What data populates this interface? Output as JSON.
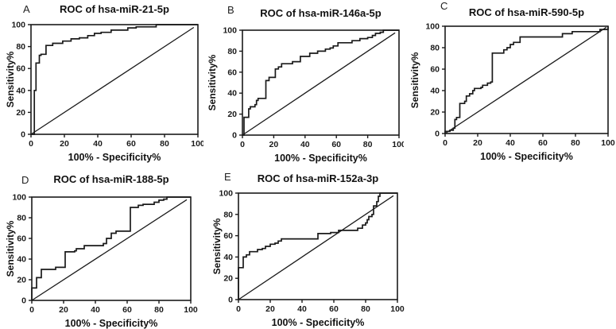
{
  "figure": {
    "background_color": "#ffffff",
    "line_color": "#1a1a1a",
    "description_labels": [
      "A",
      "B",
      "C",
      "D",
      "E"
    ]
  },
  "chart_data": [
    {
      "type": "line",
      "panel": "A",
      "title": "ROC of hsa-miR-21-5p",
      "xlabel": "100%  - Specificity%",
      "ylabel": "Sensitivity%",
      "xlim": [
        0,
        100
      ],
      "ylim": [
        0,
        100
      ],
      "xticks": [
        0,
        20,
        40,
        60,
        80,
        100
      ],
      "yticks": [
        0,
        20,
        40,
        60,
        80,
        100
      ],
      "grid": false,
      "legend": "none",
      "series": [
        {
          "name": "ROC curve",
          "points": [
            [
              0,
              0
            ],
            [
              2,
              0
            ],
            [
              2,
              40
            ],
            [
              3,
              40
            ],
            [
              3,
              65
            ],
            [
              5,
              65
            ],
            [
              5,
              72
            ],
            [
              6,
              72
            ],
            [
              6,
              73
            ],
            [
              9,
              73
            ],
            [
              9,
              81
            ],
            [
              13,
              81
            ],
            [
              13,
              83
            ],
            [
              19,
              83
            ],
            [
              19,
              85
            ],
            [
              24,
              85
            ],
            [
              24,
              87
            ],
            [
              29,
              87
            ],
            [
              29,
              88
            ],
            [
              34,
              88
            ],
            [
              34,
              90
            ],
            [
              38,
              90
            ],
            [
              38,
              92
            ],
            [
              42,
              92
            ],
            [
              42,
              93
            ],
            [
              48,
              93
            ],
            [
              48,
              95
            ],
            [
              58,
              95
            ],
            [
              58,
              97
            ],
            [
              63,
              97
            ],
            [
              63,
              98
            ],
            [
              75,
              98
            ],
            [
              75,
              100
            ],
            [
              100,
              100
            ]
          ]
        },
        {
          "name": "identity line",
          "points": [
            [
              0,
              0
            ],
            [
              97.5,
              97.5
            ]
          ]
        }
      ]
    },
    {
      "type": "line",
      "panel": "B",
      "title": "ROC of hsa-miR-146a-5p",
      "xlabel": "100%  - Specificity%",
      "ylabel": "Sensitivity%",
      "xlim": [
        0,
        100
      ],
      "ylim": [
        0,
        100
      ],
      "xticks": [
        0,
        20,
        40,
        60,
        80,
        100
      ],
      "yticks": [
        0,
        20,
        40,
        60,
        80,
        100
      ],
      "grid": false,
      "legend": "none",
      "series": [
        {
          "name": "ROC curve",
          "points": [
            [
              0,
              0
            ],
            [
              1,
              0
            ],
            [
              1,
              17
            ],
            [
              4,
              17
            ],
            [
              4,
              25
            ],
            [
              5,
              25
            ],
            [
              5,
              27
            ],
            [
              8,
              27
            ],
            [
              8,
              29
            ],
            [
              9,
              29
            ],
            [
              9,
              33
            ],
            [
              10,
              33
            ],
            [
              10,
              35
            ],
            [
              15,
              35
            ],
            [
              15,
              52
            ],
            [
              17,
              52
            ],
            [
              17,
              55
            ],
            [
              21,
              55
            ],
            [
              21,
              63
            ],
            [
              23,
              63
            ],
            [
              23,
              65
            ],
            [
              25,
              65
            ],
            [
              25,
              68
            ],
            [
              32,
              68
            ],
            [
              32,
              70
            ],
            [
              37,
              70
            ],
            [
              37,
              75
            ],
            [
              43,
              75
            ],
            [
              43,
              78
            ],
            [
              48,
              78
            ],
            [
              48,
              80
            ],
            [
              53,
              80
            ],
            [
              53,
              82
            ],
            [
              56,
              82
            ],
            [
              56,
              83
            ],
            [
              58,
              83
            ],
            [
              58,
              85
            ],
            [
              61,
              85
            ],
            [
              61,
              88
            ],
            [
              70,
              88
            ],
            [
              70,
              90
            ],
            [
              75,
              90
            ],
            [
              75,
              92
            ],
            [
              80,
              92
            ],
            [
              80,
              93
            ],
            [
              83,
              93
            ],
            [
              83,
              95
            ],
            [
              85,
              95
            ],
            [
              85,
              97
            ],
            [
              88,
              97
            ],
            [
              88,
              98
            ],
            [
              90,
              98
            ],
            [
              90,
              100
            ],
            [
              100,
              100
            ]
          ]
        },
        {
          "name": "identity line",
          "points": [
            [
              0,
              0
            ],
            [
              97.5,
              97.5
            ]
          ]
        }
      ]
    },
    {
      "type": "line",
      "panel": "C",
      "title": "ROC of hsa-miR-590-5p",
      "xlabel": "100%  - Specificity%",
      "ylabel": "Sensitivity%",
      "xlim": [
        0,
        100
      ],
      "ylim": [
        0,
        100
      ],
      "xticks": [
        0,
        20,
        40,
        60,
        80,
        100
      ],
      "yticks": [
        0,
        20,
        40,
        60,
        80,
        100
      ],
      "grid": false,
      "legend": "none",
      "series": [
        {
          "name": "ROC curve",
          "points": [
            [
              0,
              0
            ],
            [
              0,
              2
            ],
            [
              3,
              2
            ],
            [
              3,
              3
            ],
            [
              5,
              3
            ],
            [
              5,
              5
            ],
            [
              6,
              5
            ],
            [
              6,
              13
            ],
            [
              7,
              13
            ],
            [
              7,
              15
            ],
            [
              9,
              15
            ],
            [
              9,
              28
            ],
            [
              12,
              28
            ],
            [
              12,
              30
            ],
            [
              13,
              30
            ],
            [
              13,
              35
            ],
            [
              15,
              35
            ],
            [
              15,
              37
            ],
            [
              17,
              37
            ],
            [
              17,
              40
            ],
            [
              18,
              40
            ],
            [
              18,
              42
            ],
            [
              22,
              42
            ],
            [
              22,
              43
            ],
            [
              23,
              43
            ],
            [
              23,
              45
            ],
            [
              26,
              45
            ],
            [
              26,
              47
            ],
            [
              28,
              47
            ],
            [
              28,
              48
            ],
            [
              29,
              48
            ],
            [
              29,
              75
            ],
            [
              36,
              75
            ],
            [
              36,
              78
            ],
            [
              38,
              78
            ],
            [
              38,
              80
            ],
            [
              40,
              80
            ],
            [
              40,
              83
            ],
            [
              42,
              83
            ],
            [
              42,
              85
            ],
            [
              46,
              85
            ],
            [
              46,
              90
            ],
            [
              72,
              90
            ],
            [
              72,
              93
            ],
            [
              78,
              93
            ],
            [
              78,
              95
            ],
            [
              95,
              95
            ],
            [
              95,
              97
            ],
            [
              100,
              97
            ],
            [
              100,
              100
            ]
          ]
        },
        {
          "name": "identity line",
          "points": [
            [
              0,
              0
            ],
            [
              99,
              99
            ]
          ]
        }
      ]
    },
    {
      "type": "line",
      "panel": "D",
      "title": "ROC of hsa-miR-188-5p",
      "xlabel": "100%  - Specificity%",
      "ylabel": "Sensitivity%",
      "xlim": [
        0,
        100
      ],
      "ylim": [
        0,
        100
      ],
      "xticks": [
        0,
        20,
        40,
        60,
        80,
        100
      ],
      "yticks": [
        0,
        20,
        40,
        60,
        80,
        100
      ],
      "grid": false,
      "legend": "none",
      "series": [
        {
          "name": "ROC curve",
          "points": [
            [
              0,
              0
            ],
            [
              0,
              12
            ],
            [
              3,
              12
            ],
            [
              3,
              22
            ],
            [
              6,
              22
            ],
            [
              6,
              30
            ],
            [
              15,
              30
            ],
            [
              15,
              32
            ],
            [
              21,
              32
            ],
            [
              21,
              47
            ],
            [
              27,
              47
            ],
            [
              27,
              48
            ],
            [
              28,
              48
            ],
            [
              28,
              50
            ],
            [
              33,
              50
            ],
            [
              33,
              53
            ],
            [
              45,
              53
            ],
            [
              45,
              55
            ],
            [
              47,
              55
            ],
            [
              47,
              60
            ],
            [
              50,
              60
            ],
            [
              50,
              65
            ],
            [
              53,
              65
            ],
            [
              53,
              67
            ],
            [
              62,
              67
            ],
            [
              62,
              90
            ],
            [
              67,
              90
            ],
            [
              67,
              92
            ],
            [
              70,
              92
            ],
            [
              70,
              93
            ],
            [
              77,
              93
            ],
            [
              77,
              95
            ],
            [
              80,
              95
            ],
            [
              80,
              97
            ],
            [
              83,
              97
            ],
            [
              83,
              98
            ],
            [
              85,
              98
            ],
            [
              85,
              100
            ],
            [
              100,
              100
            ]
          ]
        },
        {
          "name": "identity line",
          "points": [
            [
              0,
              0
            ],
            [
              97.5,
              97.5
            ]
          ]
        }
      ]
    },
    {
      "type": "line",
      "panel": "E",
      "title": "ROC of hsa-miR-152a-3p",
      "xlabel": "100%  - Specificity%",
      "ylabel": "Sensitivity%",
      "xlim": [
        0,
        100
      ],
      "ylim": [
        0,
        100
      ],
      "xticks": [
        0,
        20,
        40,
        60,
        80,
        100
      ],
      "yticks": [
        0,
        20,
        40,
        60,
        80,
        100
      ],
      "grid": false,
      "legend": "none",
      "series": [
        {
          "name": "ROC curve",
          "points": [
            [
              0,
              0
            ],
            [
              0,
              30
            ],
            [
              3,
              30
            ],
            [
              3,
              40
            ],
            [
              5,
              40
            ],
            [
              5,
              42
            ],
            [
              7,
              42
            ],
            [
              7,
              45
            ],
            [
              12,
              45
            ],
            [
              12,
              47
            ],
            [
              15,
              47
            ],
            [
              15,
              48
            ],
            [
              17,
              48
            ],
            [
              17,
              50
            ],
            [
              20,
              50
            ],
            [
              20,
              52
            ],
            [
              23,
              52
            ],
            [
              23,
              53
            ],
            [
              25,
              53
            ],
            [
              25,
              55
            ],
            [
              27,
              55
            ],
            [
              27,
              57
            ],
            [
              50,
              57
            ],
            [
              50,
              62
            ],
            [
              58,
              62
            ],
            [
              58,
              63
            ],
            [
              63,
              63
            ],
            [
              63,
              65
            ],
            [
              75,
              65
            ],
            [
              75,
              67
            ],
            [
              78,
              67
            ],
            [
              78,
              70
            ],
            [
              80,
              70
            ],
            [
              80,
              72
            ],
            [
              81,
              72
            ],
            [
              81,
              75
            ],
            [
              82,
              75
            ],
            [
              82,
              78
            ],
            [
              84,
              78
            ],
            [
              84,
              80
            ],
            [
              85,
              80
            ],
            [
              85,
              88
            ],
            [
              87,
              88
            ],
            [
              87,
              92
            ],
            [
              88,
              92
            ],
            [
              88,
              97
            ],
            [
              89,
              97
            ],
            [
              89,
              100
            ],
            [
              100,
              100
            ]
          ]
        },
        {
          "name": "identity line",
          "points": [
            [
              0,
              0
            ],
            [
              97.5,
              97.5
            ]
          ]
        }
      ]
    }
  ]
}
